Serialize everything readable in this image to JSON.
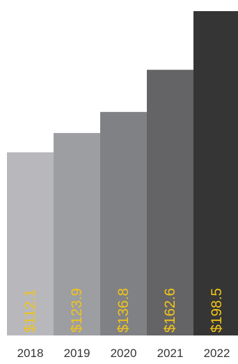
{
  "chart_data": {
    "type": "bar",
    "title": "",
    "xlabel": "",
    "ylabel": "",
    "categories": [
      "2018",
      "2019",
      "2020",
      "2021",
      "2022"
    ],
    "values": [
      112.1,
      123.9,
      136.8,
      162.6,
      198.5
    ],
    "data_labels": [
      "$112.1",
      "$123.9",
      "$136.8",
      "$162.6",
      "$198.5"
    ],
    "ylim": [
      0,
      198.5
    ],
    "grid": false,
    "legend": "none",
    "bar_colors": [
      "#b8b8bc",
      "#9d9ea2",
      "#808184",
      "#646466",
      "#353535"
    ],
    "label_color": "#f0c419"
  }
}
